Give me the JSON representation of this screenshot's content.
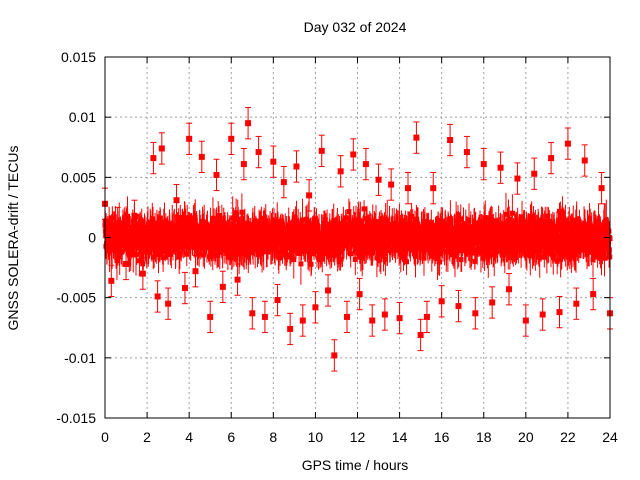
{
  "chart_data": {
    "type": "scatter",
    "title": "Day 032 of 2024",
    "xlabel": "GPS time / hours",
    "ylabel": "GNSS SOLERA-drift / TECUs",
    "xlim": [
      0,
      24
    ],
    "ylim": [
      -0.015,
      0.015
    ],
    "x_ticks": [
      0,
      2,
      4,
      6,
      8,
      10,
      12,
      14,
      16,
      18,
      20,
      22,
      24
    ],
    "x_tick_labels": [
      "0",
      "2",
      "4",
      "6",
      "8",
      "10",
      "12",
      "14",
      "16",
      "18",
      "20",
      "22",
      "24"
    ],
    "y_ticks": [
      -0.015,
      -0.01,
      -0.005,
      0,
      0.005,
      0.01,
      0.015
    ],
    "y_tick_labels": [
      "-0.015",
      "-0.01",
      "-0.005",
      "0",
      "0.005",
      "0.01",
      "0.015"
    ],
    "grid": true,
    "legend": "none",
    "series_color": "#ff0000",
    "marker": "square",
    "error_bars": true,
    "series": [
      {
        "x": [
          0.0,
          0.3,
          0.6,
          1.0,
          1.4,
          1.8,
          2.3,
          2.5,
          2.7,
          3.0,
          3.4,
          3.8,
          4.0,
          4.3,
          4.6,
          5.0,
          5.3,
          5.6,
          6.0,
          6.3,
          6.6,
          6.8,
          7.0,
          7.3,
          7.6,
          8.0,
          8.2,
          8.5,
          8.8,
          9.1,
          9.4,
          9.7,
          10.0,
          10.3,
          10.6,
          10.9,
          11.2,
          11.5,
          11.8,
          12.1,
          12.4,
          12.7,
          13.0,
          13.3,
          13.6,
          14.0,
          14.4,
          14.8,
          15.0,
          15.3,
          15.6,
          16.0,
          16.4,
          16.8,
          17.2,
          17.6,
          18.0,
          18.4,
          18.8,
          19.2,
          19.6,
          20.0,
          20.4,
          20.8,
          21.2,
          21.6,
          22.0,
          22.4,
          22.8,
          23.2,
          23.6,
          24.0
        ],
        "y": [
          0.0028,
          -0.0036,
          0.0012,
          -0.0022,
          0.0018,
          -0.003,
          0.0066,
          -0.0049,
          0.0074,
          -0.0055,
          0.0031,
          -0.0042,
          0.0082,
          -0.0028,
          0.0067,
          -0.0066,
          0.0052,
          -0.0041,
          0.0082,
          -0.0035,
          0.0061,
          0.0095,
          -0.0063,
          0.0071,
          -0.0066,
          0.0063,
          -0.0052,
          0.0046,
          -0.0076,
          0.0059,
          -0.0069,
          0.0035,
          -0.0058,
          0.0072,
          -0.0044,
          -0.0098,
          0.0055,
          -0.0066,
          0.0069,
          -0.0047,
          0.0061,
          -0.0069,
          0.0048,
          -0.0064,
          0.0044,
          -0.0067,
          0.0041,
          0.0083,
          -0.0081,
          -0.0066,
          0.0041,
          -0.0053,
          0.0081,
          -0.0057,
          0.0071,
          -0.0063,
          0.0061,
          -0.0054,
          0.0058,
          -0.0043,
          0.0049,
          -0.0069,
          0.0053,
          -0.0064,
          0.0066,
          -0.0062,
          0.0078,
          -0.0055,
          0.0064,
          -0.0047,
          0.0041,
          -0.0063
        ]
      }
    ]
  }
}
